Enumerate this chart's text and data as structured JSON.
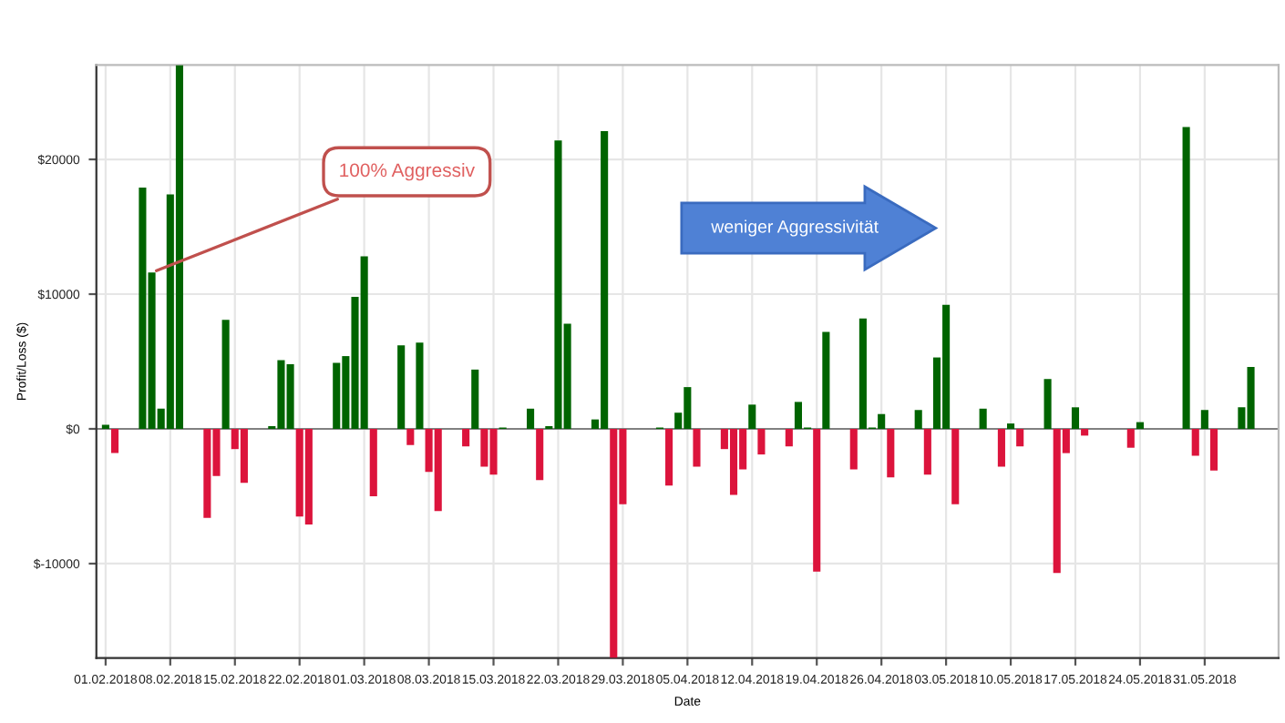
{
  "chart_data": {
    "type": "bar",
    "xlabel": "Date",
    "ylabel": "Profit/Loss ($)",
    "x": [
      "2018-02-01",
      "2018-02-02",
      "2018-02-05",
      "2018-02-06",
      "2018-02-07",
      "2018-02-08",
      "2018-02-09",
      "2018-02-12",
      "2018-02-13",
      "2018-02-14",
      "2018-02-15",
      "2018-02-16",
      "2018-02-19",
      "2018-02-20",
      "2018-02-21",
      "2018-02-22",
      "2018-02-23",
      "2018-02-26",
      "2018-02-27",
      "2018-02-28",
      "2018-03-01",
      "2018-03-02",
      "2018-03-05",
      "2018-03-06",
      "2018-03-07",
      "2018-03-08",
      "2018-03-09",
      "2018-03-12",
      "2018-03-13",
      "2018-03-14",
      "2018-03-15",
      "2018-03-16",
      "2018-03-19",
      "2018-03-20",
      "2018-03-21",
      "2018-03-22",
      "2018-03-23",
      "2018-03-26",
      "2018-03-27",
      "2018-03-28",
      "2018-03-29",
      "2018-04-02",
      "2018-04-03",
      "2018-04-04",
      "2018-04-05",
      "2018-04-06",
      "2018-04-09",
      "2018-04-10",
      "2018-04-11",
      "2018-04-12",
      "2018-04-13",
      "2018-04-16",
      "2018-04-17",
      "2018-04-18",
      "2018-04-19",
      "2018-04-20",
      "2018-04-23",
      "2018-04-24",
      "2018-04-25",
      "2018-04-26",
      "2018-04-27",
      "2018-04-30",
      "2018-05-01",
      "2018-05-02",
      "2018-05-03",
      "2018-05-04",
      "2018-05-07",
      "2018-05-09",
      "2018-05-10",
      "2018-05-11",
      "2018-05-14",
      "2018-05-15",
      "2018-05-16",
      "2018-05-17",
      "2018-05-18",
      "2018-05-23",
      "2018-05-24",
      "2018-05-29",
      "2018-05-30",
      "2018-05-31",
      "2018-06-01",
      "2018-06-04",
      "2018-06-05"
    ],
    "values": [
      300,
      -1800,
      17900,
      11600,
      1500,
      17400,
      27000,
      -6600,
      -3500,
      8100,
      -1500,
      -4000,
      200,
      5100,
      4800,
      -6500,
      -7100,
      4900,
      5400,
      9800,
      12800,
      -5000,
      6200,
      -1200,
      6400,
      -3200,
      -6100,
      -1300,
      4400,
      -2800,
      -3400,
      100,
      1500,
      -3800,
      200,
      21400,
      7800,
      700,
      22100,
      -17000,
      -5600,
      100,
      -4200,
      1200,
      3100,
      -2800,
      -1500,
      -4900,
      -3000,
      1800,
      -1900,
      -1300,
      2000,
      100,
      -10600,
      7200,
      -3000,
      8200,
      100,
      1100,
      -3600,
      1400,
      -3400,
      5300,
      9200,
      -5600,
      1500,
      -2800,
      400,
      -1300,
      3700,
      -10700,
      -1800,
      1600,
      -500,
      -1400,
      500,
      22400,
      -2000,
      1400,
      -3100,
      1600,
      4600
    ],
    "colors": [
      "#006400",
      "#dc143c",
      "#006400",
      "#006400",
      "#006400",
      "#006400",
      "#006400",
      "#dc143c",
      "#dc143c",
      "#006400",
      "#dc143c",
      "#dc143c",
      "#006400",
      "#006400",
      "#006400",
      "#dc143c",
      "#dc143c",
      "#006400",
      "#006400",
      "#006400",
      "#006400",
      "#dc143c",
      "#006400",
      "#dc143c",
      "#006400",
      "#dc143c",
      "#dc143c",
      "#dc143c",
      "#006400",
      "#dc143c",
      "#dc143c",
      "#006400",
      "#006400",
      "#dc143c",
      "#006400",
      "#006400",
      "#006400",
      "#006400",
      "#006400",
      "#dc143c",
      "#dc143c",
      "#006400",
      "#dc143c",
      "#006400",
      "#006400",
      "#dc143c",
      "#dc143c",
      "#dc143c",
      "#dc143c",
      "#006400",
      "#dc143c",
      "#dc143c",
      "#006400",
      "#006400",
      "#dc143c",
      "#006400",
      "#dc143c",
      "#006400",
      "#006400",
      "#006400",
      "#dc143c",
      "#006400",
      "#dc143c",
      "#006400",
      "#006400",
      "#dc143c",
      "#006400",
      "#dc143c",
      "#006400",
      "#dc143c",
      "#006400",
      "#dc143c",
      "#dc143c",
      "#006400",
      "#dc143c",
      "#dc143c",
      "#006400",
      "#006400",
      "#dc143c",
      "#006400",
      "#dc143c",
      "#006400",
      "#006400"
    ],
    "xlim": [
      "2018-01-31",
      "2018-06-08"
    ],
    "xticks": [
      {
        "value": "2018-02-01",
        "label": "01.02.2018"
      },
      {
        "value": "2018-02-08",
        "label": "08.02.2018"
      },
      {
        "value": "2018-02-15",
        "label": "15.02.2018"
      },
      {
        "value": "2018-02-22",
        "label": "22.02.2018"
      },
      {
        "value": "2018-03-01",
        "label": "01.03.2018"
      },
      {
        "value": "2018-03-08",
        "label": "08.03.2018"
      },
      {
        "value": "2018-03-15",
        "label": "15.03.2018"
      },
      {
        "value": "2018-03-22",
        "label": "22.03.2018"
      },
      {
        "value": "2018-03-29",
        "label": "29.03.2018"
      },
      {
        "value": "2018-04-05",
        "label": "05.04.2018"
      },
      {
        "value": "2018-04-12",
        "label": "12.04.2018"
      },
      {
        "value": "2018-04-19",
        "label": "19.04.2018"
      },
      {
        "value": "2018-04-26",
        "label": "26.04.2018"
      },
      {
        "value": "2018-05-03",
        "label": "03.05.2018"
      },
      {
        "value": "2018-05-10",
        "label": "10.05.2018"
      },
      {
        "value": "2018-05-17",
        "label": "17.05.2018"
      },
      {
        "value": "2018-05-24",
        "label": "24.05.2018"
      },
      {
        "value": "2018-05-31",
        "label": "31.05.2018"
      }
    ],
    "ylim": [
      -17000,
      27000
    ],
    "yticks": [
      {
        "value": -10000,
        "label": "$-10000"
      },
      {
        "value": 0,
        "label": "$0"
      },
      {
        "value": 10000,
        "label": "$10000"
      },
      {
        "value": 20000,
        "label": "$20000"
      }
    ],
    "grid": true,
    "ref_lines": [
      {
        "axis": "y",
        "value": 0,
        "color": "#808080"
      }
    ],
    "annotations": [
      {
        "text": "100% Aggressiv",
        "x": "2018-02-06",
        "y": 11600
      },
      "weniger Aggressivität"
    ]
  }
}
